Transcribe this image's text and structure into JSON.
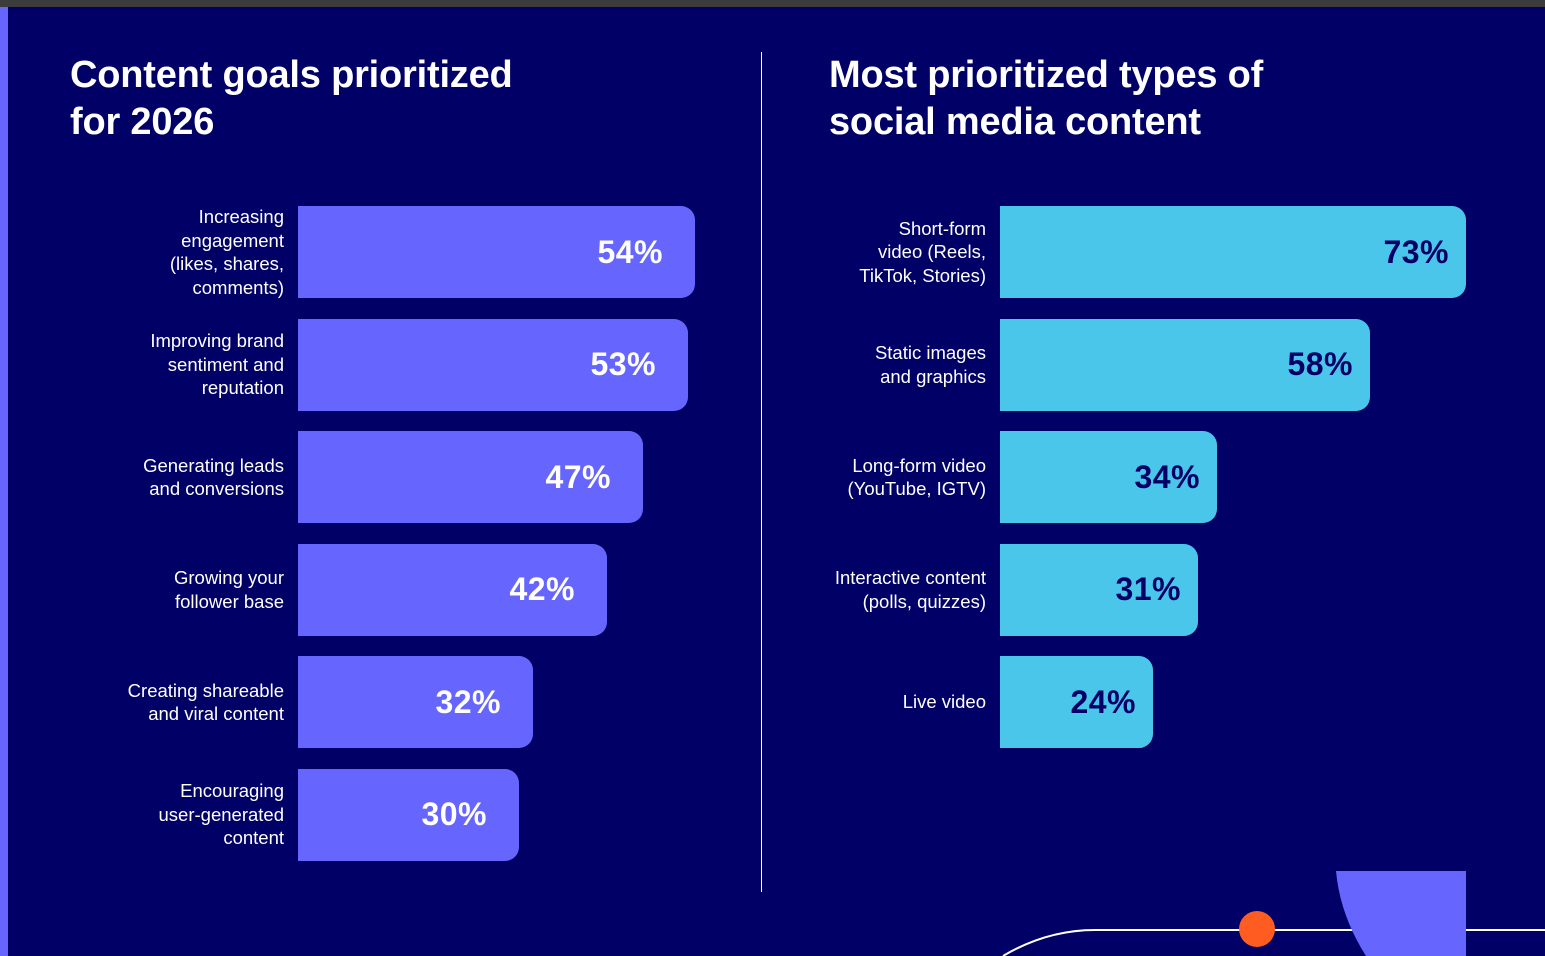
{
  "chart_data": [
    {
      "type": "bar",
      "orientation": "horizontal",
      "title": "Content goals prioritized\nfor 2026",
      "xlabel": "",
      "ylabel": "",
      "unit": "%",
      "grid": false,
      "categories": [
        "Increasing\nengagement\n(likes, shares,\ncomments)",
        "Improving brand\nsentiment and\nreputation",
        "Generating leads\nand conversions",
        "Growing your\nfollower base",
        "Creating shareable\nand viral content",
        "Encouraging\nuser-generated\ncontent"
      ],
      "values": [
        54,
        53,
        47,
        42,
        32,
        30
      ],
      "value_labels": [
        "54%",
        "53%",
        "47%",
        "42%",
        "32%",
        "30%"
      ],
      "bar_color": "#6666ff",
      "value_label_color": "#ffffff"
    },
    {
      "type": "bar",
      "orientation": "horizontal",
      "title": "Most prioritized types of\nsocial media content",
      "xlabel": "",
      "ylabel": "",
      "unit": "%",
      "grid": false,
      "categories": [
        "Short-form\nvideo (Reels,\nTikTok, Stories)",
        "Static images\nand graphics",
        "Long-form video\n(YouTube, IGTV)",
        "Interactive content\n(polls, quizzes)",
        "Live video"
      ],
      "values": [
        73,
        58,
        34,
        31,
        24
      ],
      "value_labels": [
        "73%",
        "58%",
        "34%",
        "31%",
        "24%"
      ],
      "bar_color": "#4ac6ea",
      "value_label_color": "#000066"
    }
  ],
  "colors": {
    "background": "#000066",
    "accent_purple": "#6666ff",
    "accent_cyan": "#4ac6ea",
    "accent_orange": "#ff5c22",
    "text": "#ffffff"
  }
}
